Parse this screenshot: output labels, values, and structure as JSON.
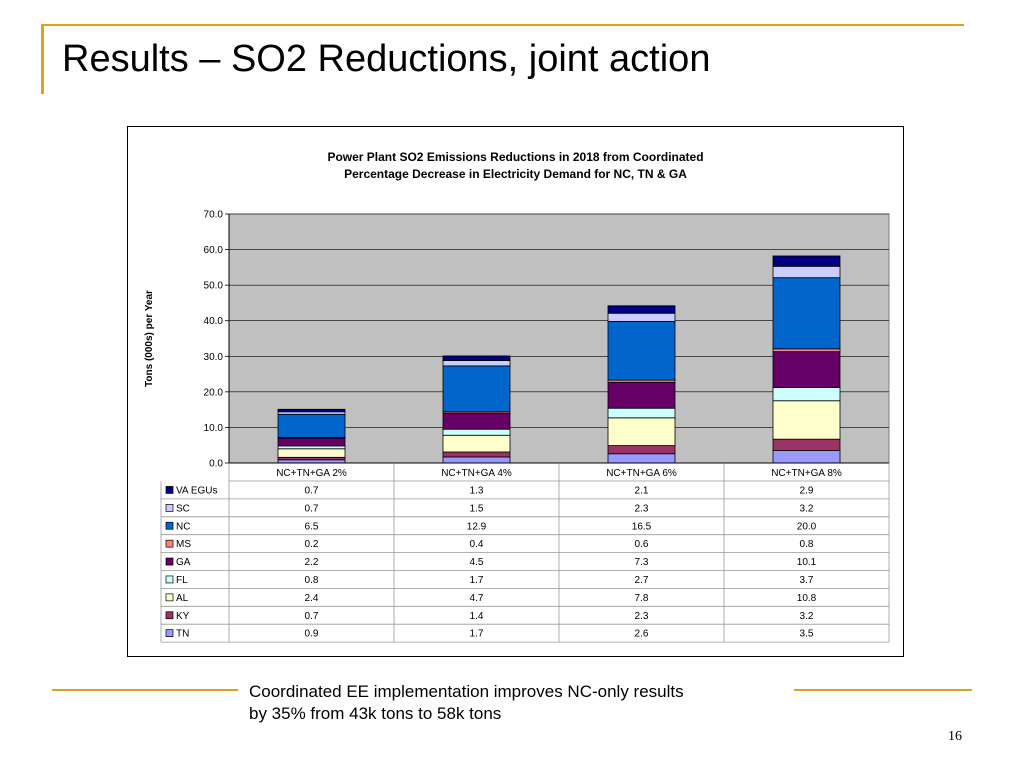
{
  "slide": {
    "title": "Results – SO2 Reductions, joint action",
    "takeaway_line1": "Coordinated EE implementation improves NC-only results",
    "takeaway_line2": "by 35% from 43k tons to 58k tons",
    "page_number": "16"
  },
  "chart_data": {
    "type": "bar",
    "stacked": true,
    "title_line1": "Power Plant SO2 Emissions Reductions in 2018 from Coordinated",
    "title_line2": "Percentage Decrease in Electricity Demand for NC, TN & GA",
    "xlabel": "",
    "ylabel": "Tons (000s) per Year",
    "ylim": [
      0,
      70
    ],
    "yticks": [
      "0.0",
      "10.0",
      "20.0",
      "30.0",
      "40.0",
      "50.0",
      "60.0",
      "70.0"
    ],
    "grid": true,
    "legend": "data-table",
    "categories": [
      "NC+TN+GA 2%",
      "NC+TN+GA 4%",
      "NC+TN+GA 6%",
      "NC+TN+GA 8%"
    ],
    "series": [
      {
        "name": "VA EGUs",
        "color": "#000080",
        "values": [
          0.7,
          1.3,
          2.1,
          2.9
        ],
        "labels": [
          "0.7",
          "1.3",
          "2.1",
          "2.9"
        ]
      },
      {
        "name": "SC",
        "color": "#ccccff",
        "values": [
          0.7,
          1.5,
          2.3,
          3.2
        ],
        "labels": [
          "0.7",
          "1.5",
          "2.3",
          "3.2"
        ]
      },
      {
        "name": "NC",
        "color": "#0066cc",
        "values": [
          6.5,
          12.9,
          16.5,
          20.0
        ],
        "labels": [
          "6.5",
          "12.9",
          "16.5",
          "20.0"
        ]
      },
      {
        "name": "MS",
        "color": "#ff8080",
        "values": [
          0.2,
          0.4,
          0.6,
          0.8
        ],
        "labels": [
          "0.2",
          "0.4",
          "0.6",
          "0.8"
        ]
      },
      {
        "name": "GA",
        "color": "#660066",
        "values": [
          2.2,
          4.5,
          7.3,
          10.1
        ],
        "labels": [
          "2.2",
          "4.5",
          "7.3",
          "10.1"
        ]
      },
      {
        "name": "FL",
        "color": "#ccffff",
        "values": [
          0.8,
          1.7,
          2.7,
          3.7
        ],
        "labels": [
          "0.8",
          "1.7",
          "2.7",
          "3.7"
        ]
      },
      {
        "name": "AL",
        "color": "#ffffcc",
        "values": [
          2.4,
          4.7,
          7.8,
          10.8
        ],
        "labels": [
          "2.4",
          "4.7",
          "7.8",
          "10.8"
        ]
      },
      {
        "name": "KY",
        "color": "#993366",
        "values": [
          0.7,
          1.4,
          2.3,
          3.2
        ],
        "labels": [
          "0.7",
          "1.4",
          "2.3",
          "3.2"
        ]
      },
      {
        "name": "TN",
        "color": "#9999ff",
        "values": [
          0.9,
          1.7,
          2.6,
          3.5
        ],
        "labels": [
          "0.9",
          "1.7",
          "2.6",
          "3.5"
        ]
      }
    ]
  }
}
